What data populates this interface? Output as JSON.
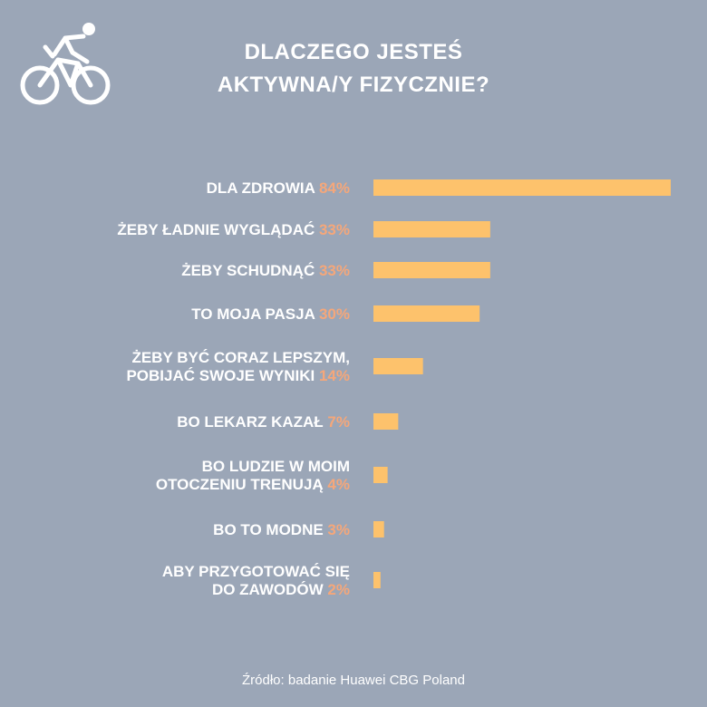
{
  "title_lines": [
    "DLACZEGO JESTEŚ",
    "AKTYWNA/Y FIZYCZNIE?"
  ],
  "source": "Źródło: badanie Huawei CBG Poland",
  "icon": "cyclist-icon",
  "colors": {
    "background": "#9ba6b7",
    "bar": "#fdc26c",
    "label": "#ffffff",
    "percent": "#f5a77a"
  },
  "chart_data": {
    "type": "bar",
    "orientation": "horizontal",
    "title": "DLACZEGO JESTEŚ AKTYWNA/Y FIZYCZNIE?",
    "categories": [
      [
        "DLA ZDROWIA"
      ],
      [
        "ŻEBY ŁADNIE WYGLĄDAĆ"
      ],
      [
        "ŻEBY SCHUDNĄĆ"
      ],
      [
        "TO MOJA PASJA"
      ],
      [
        "ŻEBY BYĆ CORAZ LEPSZYM,",
        "POBIJAĆ SWOJE WYNIKI"
      ],
      [
        "BO LEKARZ KAZAŁ"
      ],
      [
        "BO LUDZIE W MOIM",
        "OTOCZENIU TRENUJĄ"
      ],
      [
        "BO TO MODNE"
      ],
      [
        "ABY PRZYGOTOWAĆ SIĘ",
        "DO ZAWODÓW"
      ]
    ],
    "values": [
      84,
      33,
      33,
      30,
      14,
      7,
      4,
      3,
      2
    ],
    "value_labels": [
      "84%",
      "33%",
      "33%",
      "30%",
      "14%",
      "7%",
      "4%",
      "3%",
      "2%"
    ],
    "xlim": [
      0,
      84
    ],
    "grid": false,
    "legend": false
  }
}
